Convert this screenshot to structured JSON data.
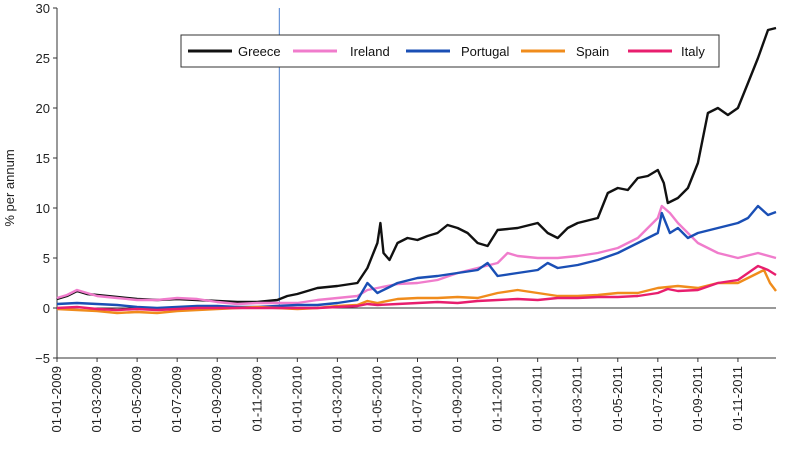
{
  "chart_data": {
    "type": "line",
    "title": "",
    "xlabel": "",
    "ylabel": "% per annum",
    "ylim": [
      -5,
      30
    ],
    "yticks": [
      "−5",
      "0",
      "5",
      "10",
      "15",
      "20",
      "25",
      "30"
    ],
    "xtick_labels": [
      "01-01-2009",
      "01-03-2009",
      "01-05-2009",
      "01-07-2009",
      "01-09-2009",
      "01-11-2009",
      "01-01-2010",
      "01-03-2010",
      "01-05-2010",
      "01-07-2010",
      "01-09-2010",
      "01-11-2010",
      "01-01-2011",
      "01-03-2011",
      "01-05-2011",
      "01-07-2011",
      "01-09-2011",
      "01-11-2011"
    ],
    "xlim_months": [
      0,
      35.9
    ],
    "vertical_line_month": 11.1,
    "legend_position": "top-right",
    "grid": false,
    "series": [
      {
        "name": "Greece",
        "color": "#111111",
        "points": [
          [
            0,
            0.9
          ],
          [
            0.5,
            1.2
          ],
          [
            1,
            1.7
          ],
          [
            1.5,
            1.4
          ],
          [
            2,
            1.3
          ],
          [
            3,
            1.1
          ],
          [
            4,
            0.9
          ],
          [
            5,
            0.8
          ],
          [
            6,
            0.9
          ],
          [
            7,
            0.8
          ],
          [
            8,
            0.7
          ],
          [
            9,
            0.6
          ],
          [
            10,
            0.6
          ],
          [
            11,
            0.8
          ],
          [
            11.5,
            1.2
          ],
          [
            12,
            1.4
          ],
          [
            13,
            2.0
          ],
          [
            14,
            2.2
          ],
          [
            15,
            2.5
          ],
          [
            15.5,
            4.0
          ],
          [
            15.8,
            5.5
          ],
          [
            16,
            6.5
          ],
          [
            16.15,
            8.5
          ],
          [
            16.3,
            5.5
          ],
          [
            16.6,
            4.8
          ],
          [
            17,
            6.5
          ],
          [
            17.5,
            7.0
          ],
          [
            18,
            6.8
          ],
          [
            18.5,
            7.2
          ],
          [
            19,
            7.5
          ],
          [
            19.5,
            8.3
          ],
          [
            20,
            8.0
          ],
          [
            20.5,
            7.5
          ],
          [
            21,
            6.5
          ],
          [
            21.5,
            6.2
          ],
          [
            22,
            7.8
          ],
          [
            23,
            8.0
          ],
          [
            24,
            8.5
          ],
          [
            24.5,
            7.5
          ],
          [
            25,
            7.0
          ],
          [
            25.5,
            8.0
          ],
          [
            26,
            8.5
          ],
          [
            27,
            9.0
          ],
          [
            27.5,
            11.5
          ],
          [
            28,
            12.0
          ],
          [
            28.5,
            11.8
          ],
          [
            29,
            13.0
          ],
          [
            29.5,
            13.2
          ],
          [
            30,
            13.8
          ],
          [
            30.3,
            12.5
          ],
          [
            30.5,
            10.5
          ],
          [
            31,
            11.0
          ],
          [
            31.5,
            12.0
          ],
          [
            32,
            14.5
          ],
          [
            32.3,
            17.5
          ],
          [
            32.5,
            19.5
          ],
          [
            33,
            20.0
          ],
          [
            33.5,
            19.3
          ],
          [
            34,
            20.0
          ],
          [
            34.5,
            22.5
          ],
          [
            35,
            25.0
          ],
          [
            35.5,
            27.8
          ],
          [
            35.9,
            28.0
          ]
        ]
      },
      {
        "name": "Ireland",
        "color": "#f07ccc",
        "points": [
          [
            0,
            1.0
          ],
          [
            0.5,
            1.3
          ],
          [
            1,
            1.8
          ],
          [
            1.5,
            1.5
          ],
          [
            2,
            1.2
          ],
          [
            3,
            1.0
          ],
          [
            4,
            0.8
          ],
          [
            5,
            0.8
          ],
          [
            6,
            1.0
          ],
          [
            7,
            0.9
          ],
          [
            8,
            0.6
          ],
          [
            9,
            0.4
          ],
          [
            10,
            0.5
          ],
          [
            11,
            0.5
          ],
          [
            12,
            0.5
          ],
          [
            13,
            0.8
          ],
          [
            14,
            1.0
          ],
          [
            15,
            1.2
          ],
          [
            15.5,
            1.8
          ],
          [
            16,
            2.0
          ],
          [
            17,
            2.4
          ],
          [
            18,
            2.5
          ],
          [
            19,
            2.8
          ],
          [
            20,
            3.5
          ],
          [
            21,
            4.0
          ],
          [
            22,
            4.5
          ],
          [
            22.5,
            5.5
          ],
          [
            23,
            5.2
          ],
          [
            24,
            5.0
          ],
          [
            25,
            5.0
          ],
          [
            26,
            5.2
          ],
          [
            27,
            5.5
          ],
          [
            28,
            6.0
          ],
          [
            29,
            7.0
          ],
          [
            30,
            9.0
          ],
          [
            30.2,
            10.2
          ],
          [
            30.6,
            9.5
          ],
          [
            31,
            8.5
          ],
          [
            32,
            6.5
          ],
          [
            33,
            5.5
          ],
          [
            34,
            5.0
          ],
          [
            35,
            5.5
          ],
          [
            35.9,
            5.0
          ]
        ]
      },
      {
        "name": "Portugal",
        "color": "#1a4fb5",
        "points": [
          [
            0,
            0.4
          ],
          [
            1,
            0.5
          ],
          [
            2,
            0.4
          ],
          [
            3,
            0.3
          ],
          [
            4,
            0.1
          ],
          [
            5,
            0.0
          ],
          [
            6,
            0.1
          ],
          [
            7,
            0.2
          ],
          [
            8,
            0.2
          ],
          [
            9,
            0.1
          ],
          [
            10,
            0.1
          ],
          [
            11,
            0.2
          ],
          [
            12,
            0.3
          ],
          [
            13,
            0.3
          ],
          [
            14,
            0.5
          ],
          [
            15,
            0.8
          ],
          [
            15.5,
            2.5
          ],
          [
            16,
            1.5
          ],
          [
            16.5,
            2.0
          ],
          [
            17,
            2.5
          ],
          [
            18,
            3.0
          ],
          [
            19,
            3.2
          ],
          [
            20,
            3.5
          ],
          [
            21,
            3.8
          ],
          [
            21.5,
            4.5
          ],
          [
            22,
            3.2
          ],
          [
            23,
            3.5
          ],
          [
            24,
            3.8
          ],
          [
            24.5,
            4.5
          ],
          [
            25,
            4.0
          ],
          [
            26,
            4.3
          ],
          [
            27,
            4.8
          ],
          [
            28,
            5.5
          ],
          [
            29,
            6.5
          ],
          [
            30,
            7.5
          ],
          [
            30.2,
            9.5
          ],
          [
            30.6,
            7.5
          ],
          [
            31,
            8.0
          ],
          [
            31.5,
            7.0
          ],
          [
            32,
            7.5
          ],
          [
            33,
            8.0
          ],
          [
            34,
            8.5
          ],
          [
            34.5,
            9.0
          ],
          [
            35,
            10.2
          ],
          [
            35.5,
            9.3
          ],
          [
            35.9,
            9.6
          ]
        ]
      },
      {
        "name": "Spain",
        "color": "#f08c1c",
        "points": [
          [
            0,
            -0.1
          ],
          [
            1,
            -0.2
          ],
          [
            2,
            -0.3
          ],
          [
            3,
            -0.5
          ],
          [
            4,
            -0.4
          ],
          [
            5,
            -0.5
          ],
          [
            6,
            -0.3
          ],
          [
            7,
            -0.2
          ],
          [
            8,
            -0.1
          ],
          [
            9,
            0.0
          ],
          [
            10,
            0.1
          ],
          [
            11,
            0.0
          ],
          [
            12,
            -0.1
          ],
          [
            13,
            0.0
          ],
          [
            14,
            0.2
          ],
          [
            15,
            0.3
          ],
          [
            15.5,
            0.7
          ],
          [
            16,
            0.5
          ],
          [
            17,
            0.9
          ],
          [
            18,
            1.0
          ],
          [
            19,
            1.0
          ],
          [
            20,
            1.1
          ],
          [
            21,
            1.0
          ],
          [
            22,
            1.5
          ],
          [
            23,
            1.8
          ],
          [
            24,
            1.5
          ],
          [
            25,
            1.2
          ],
          [
            26,
            1.2
          ],
          [
            27,
            1.3
          ],
          [
            28,
            1.5
          ],
          [
            29,
            1.5
          ],
          [
            30,
            2.0
          ],
          [
            31,
            2.2
          ],
          [
            32,
            2.0
          ],
          [
            33,
            2.5
          ],
          [
            34,
            2.5
          ],
          [
            35,
            3.5
          ],
          [
            35.3,
            3.8
          ],
          [
            35.6,
            2.5
          ],
          [
            35.9,
            1.7
          ]
        ]
      },
      {
        "name": "Italy",
        "color": "#e81e6e",
        "points": [
          [
            0,
            0.0
          ],
          [
            1,
            0.1
          ],
          [
            2,
            -0.1
          ],
          [
            3,
            -0.2
          ],
          [
            4,
            -0.1
          ],
          [
            5,
            -0.2
          ],
          [
            6,
            -0.1
          ],
          [
            7,
            0.0
          ],
          [
            8,
            0.0
          ],
          [
            9,
            0.0
          ],
          [
            10,
            0.0
          ],
          [
            11,
            0.0
          ],
          [
            12,
            0.0
          ],
          [
            13,
            0.0
          ],
          [
            14,
            0.1
          ],
          [
            15,
            0.2
          ],
          [
            15.5,
            0.4
          ],
          [
            16,
            0.3
          ],
          [
            17,
            0.4
          ],
          [
            18,
            0.5
          ],
          [
            19,
            0.6
          ],
          [
            20,
            0.5
          ],
          [
            21,
            0.7
          ],
          [
            22,
            0.8
          ],
          [
            23,
            0.9
          ],
          [
            24,
            0.8
          ],
          [
            25,
            1.0
          ],
          [
            26,
            1.0
          ],
          [
            27,
            1.1
          ],
          [
            28,
            1.1
          ],
          [
            29,
            1.2
          ],
          [
            30,
            1.5
          ],
          [
            30.5,
            1.9
          ],
          [
            31,
            1.7
          ],
          [
            32,
            1.8
          ],
          [
            33,
            2.5
          ],
          [
            34,
            2.8
          ],
          [
            34.5,
            3.5
          ],
          [
            35,
            4.2
          ],
          [
            35.5,
            3.8
          ],
          [
            35.9,
            3.3
          ]
        ]
      }
    ]
  }
}
